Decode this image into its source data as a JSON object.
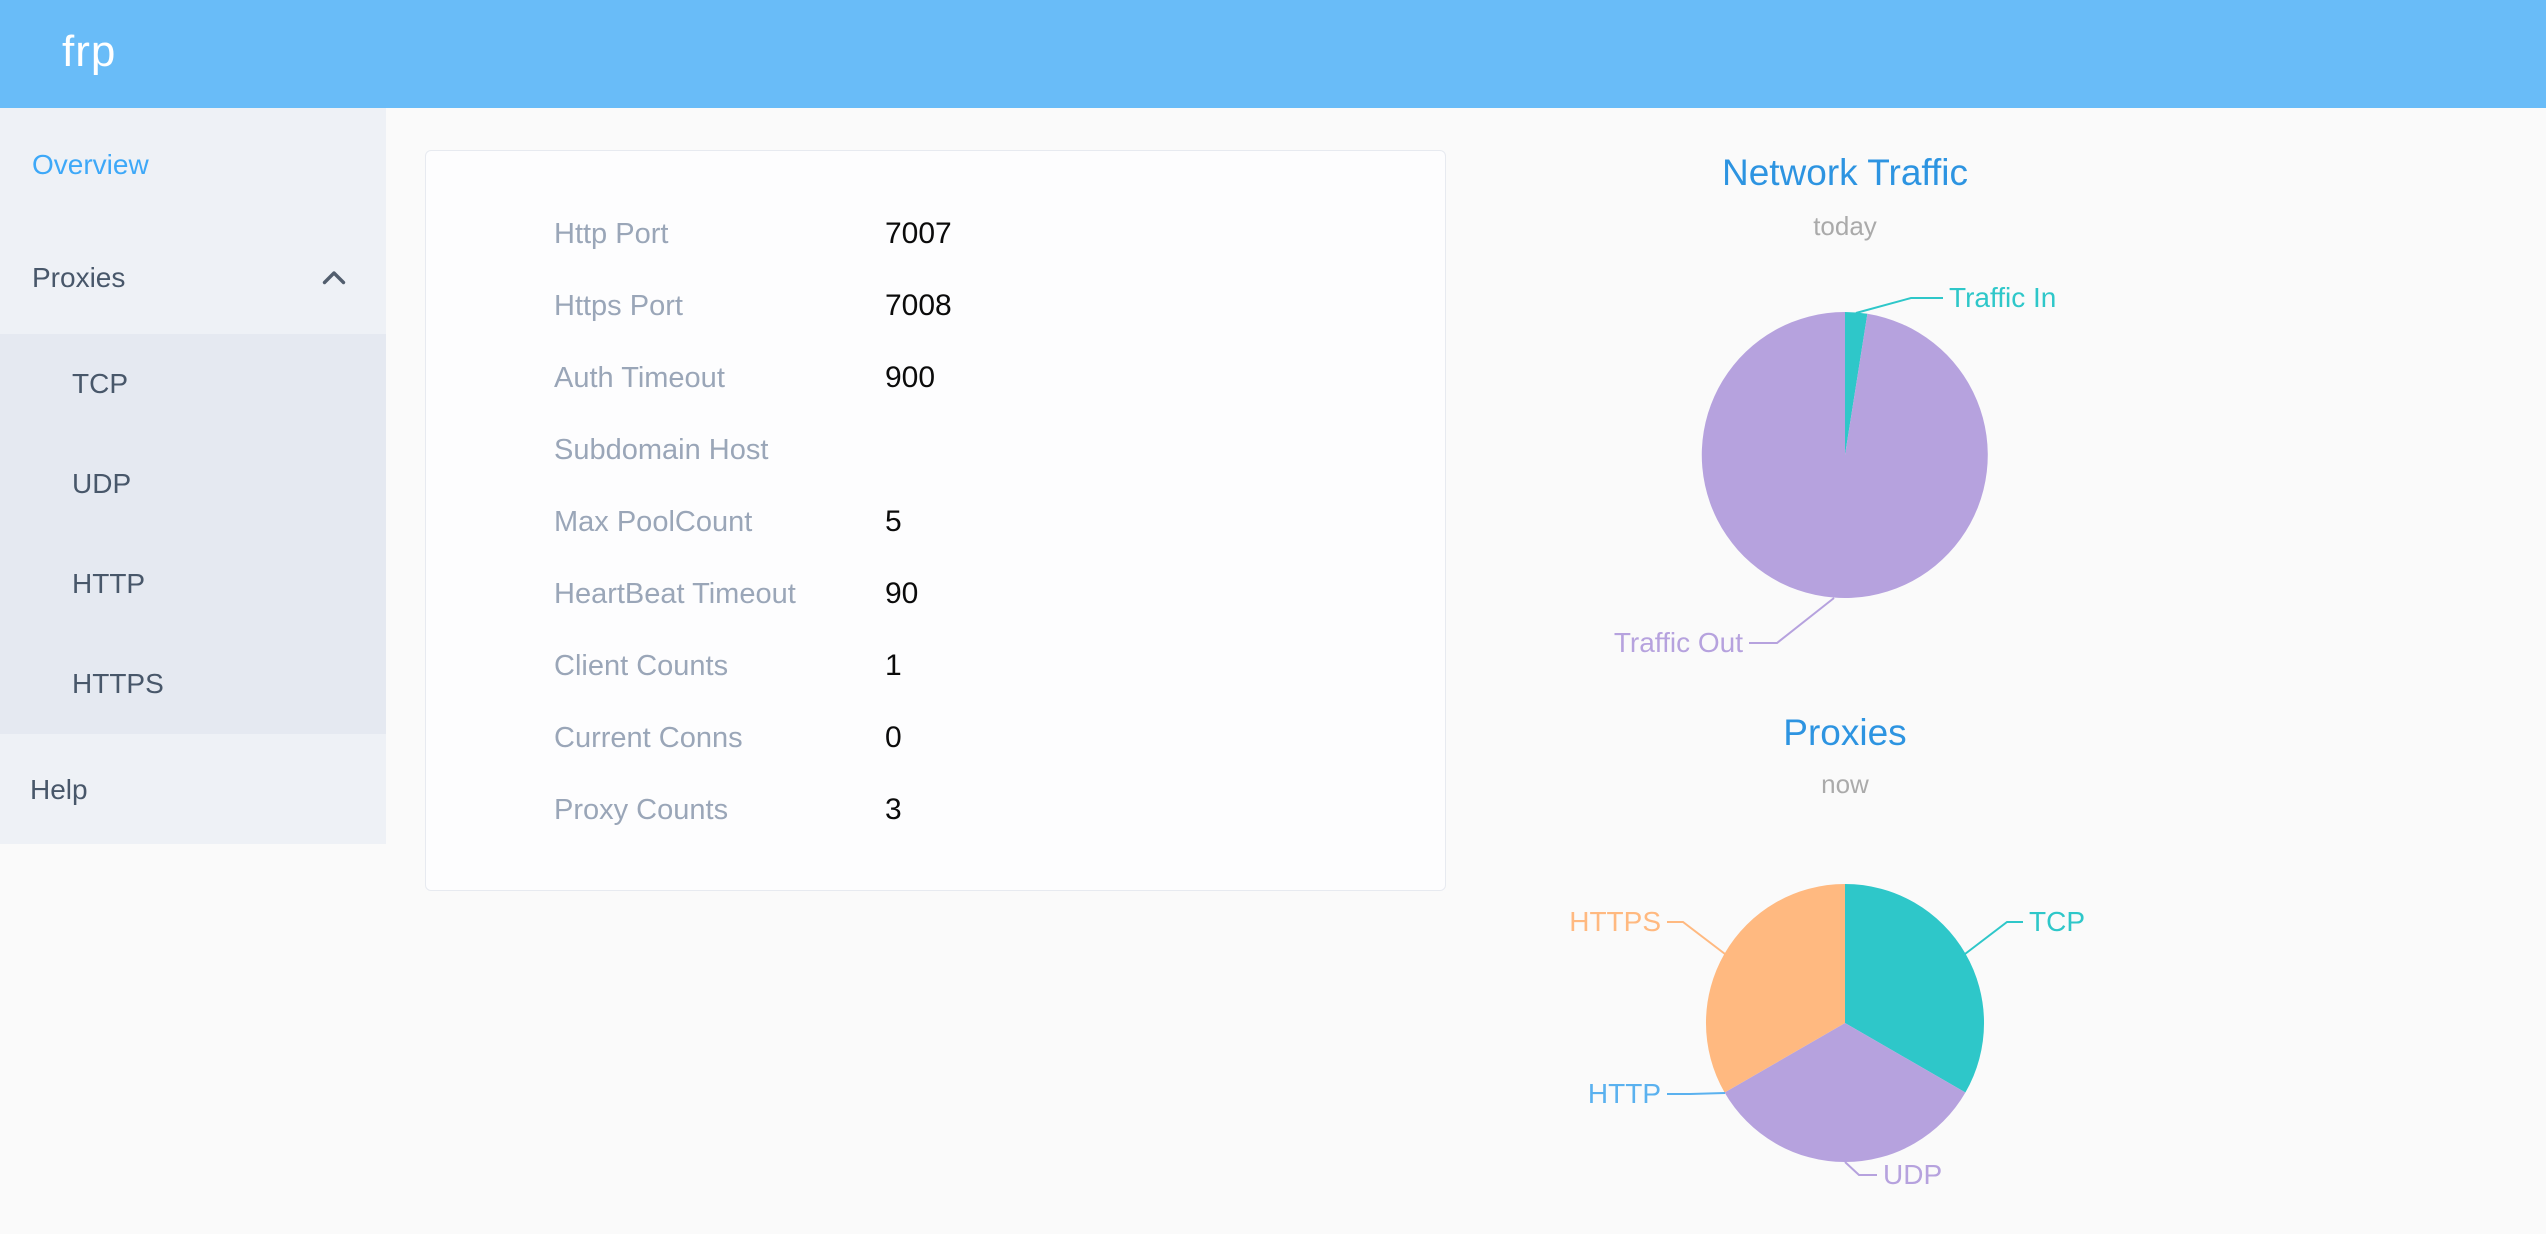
{
  "header": {
    "logo_text": "frp",
    "background_color": "#69bcf8"
  },
  "sidebar": {
    "active_color": "#3da8f8",
    "items": [
      {
        "label": "Overview",
        "active": true
      },
      {
        "label": "Proxies",
        "expanded": true,
        "children": [
          "TCP",
          "UDP",
          "HTTP",
          "HTTPS"
        ]
      },
      {
        "label": "Help"
      }
    ]
  },
  "server_info": {
    "rows": [
      {
        "label": "Http Port",
        "value": "7007"
      },
      {
        "label": "Https Port",
        "value": "7008"
      },
      {
        "label": "Auth Timeout",
        "value": "900"
      },
      {
        "label": "Subdomain Host",
        "value": ""
      },
      {
        "label": "Max PoolCount",
        "value": "5"
      },
      {
        "label": "HeartBeat Timeout",
        "value": "90"
      },
      {
        "label": "Client Counts",
        "value": "1"
      },
      {
        "label": "Current Conns",
        "value": "0"
      },
      {
        "label": "Proxy Counts",
        "value": "3"
      }
    ]
  },
  "chart_data": [
    {
      "type": "pie",
      "title": "Network Traffic",
      "subtitle": "today",
      "legend_position": "none",
      "labels_position": "outside",
      "title_color": "#2d94e1",
      "subtitle_color": "#aaaaaa",
      "slices": [
        {
          "label": "Traffic In",
          "value": 2.5,
          "unit": "percent-of-pie-approx",
          "color": "#2ec7c9"
        },
        {
          "label": "Traffic Out",
          "value": 97.5,
          "unit": "percent-of-pie-approx",
          "color": "#b6a2de"
        }
      ]
    },
    {
      "type": "pie",
      "title": "Proxies",
      "subtitle": "now",
      "legend_position": "none",
      "labels_position": "outside",
      "title_color": "#2d94e1",
      "subtitle_color": "#aaaaaa",
      "slices": [
        {
          "label": "TCP",
          "value": 1,
          "unit": "proxies",
          "color": "#2ec7c9"
        },
        {
          "label": "UDP",
          "value": 1,
          "unit": "proxies",
          "color": "#b6a2de"
        },
        {
          "label": "HTTP",
          "value": 0,
          "unit": "proxies",
          "color": "#5ab1ef"
        },
        {
          "label": "HTTPS",
          "value": 1,
          "unit": "proxies",
          "color": "#ffb980"
        }
      ]
    }
  ]
}
